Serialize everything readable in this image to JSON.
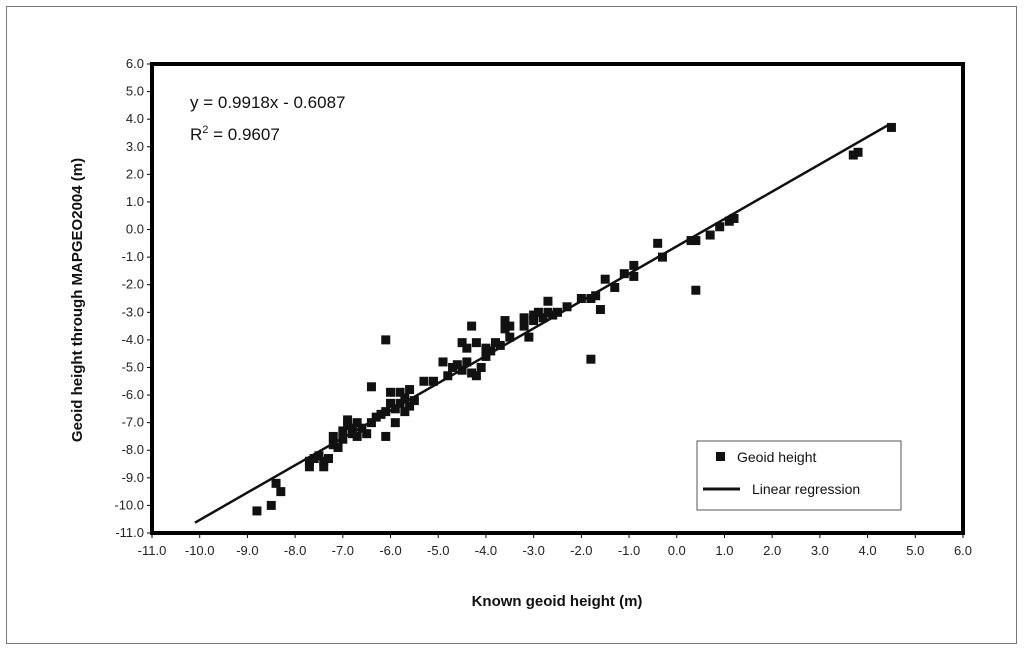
{
  "chart_data": {
    "type": "scatter",
    "xlabel": "Known geoid height (m)",
    "ylabel": "Geoid height through MAPGEO2004 (m)",
    "xlim": [
      -11,
      6
    ],
    "ylim": [
      -11,
      6
    ],
    "x_tick_labels": [
      "-11.0",
      "-10.0",
      "-9.0",
      "-8.0",
      "-7.0",
      "-6.0",
      "-5.0",
      "-4.0",
      "-3.0",
      "-2.0",
      "-1.0",
      "0.0",
      "1.0",
      "2.0",
      "3.0",
      "4.0",
      "5.0",
      "6.0"
    ],
    "y_tick_labels": [
      "-11.0",
      "-10.0",
      "-9.0",
      "-8.0",
      "-7.0",
      "-6.0",
      "-5.0",
      "-4.0",
      "-3.0",
      "-2.0",
      "-1.0",
      "0.0",
      "1.0",
      "2.0",
      "3.0",
      "4.0",
      "5.0",
      "6.0"
    ],
    "grid": false,
    "legend_position": "bottom-right",
    "annotations": {
      "equation": "y = 0.9918x - 0.6087",
      "r2_prefix": "R",
      "r2_sup": "2",
      "r2_value": " = 0.9607"
    },
    "series": [
      {
        "name": "Geoid height",
        "kind": "scatter",
        "marker": "square",
        "color": "#111111",
        "points": [
          [
            -8.8,
            -10.2
          ],
          [
            -8.5,
            -10.0
          ],
          [
            -8.4,
            -9.2
          ],
          [
            -8.3,
            -9.5
          ],
          [
            -7.7,
            -8.6
          ],
          [
            -7.7,
            -8.4
          ],
          [
            -7.6,
            -8.3
          ],
          [
            -7.5,
            -8.2
          ],
          [
            -7.4,
            -8.4
          ],
          [
            -7.4,
            -8.6
          ],
          [
            -7.3,
            -8.3
          ],
          [
            -7.2,
            -7.8
          ],
          [
            -7.2,
            -7.5
          ],
          [
            -7.1,
            -7.9
          ],
          [
            -7.0,
            -7.3
          ],
          [
            -7.0,
            -7.6
          ],
          [
            -6.9,
            -6.9
          ],
          [
            -6.9,
            -7.1
          ],
          [
            -6.8,
            -7.4
          ],
          [
            -6.8,
            -7.2
          ],
          [
            -6.7,
            -7.0
          ],
          [
            -6.7,
            -7.5
          ],
          [
            -6.6,
            -7.2
          ],
          [
            -6.5,
            -7.4
          ],
          [
            -6.4,
            -5.7
          ],
          [
            -6.4,
            -7.0
          ],
          [
            -6.3,
            -6.8
          ],
          [
            -6.2,
            -6.7
          ],
          [
            -6.1,
            -7.5
          ],
          [
            -6.1,
            -6.6
          ],
          [
            -6.1,
            -4.0
          ],
          [
            -6.0,
            -6.3
          ],
          [
            -6.0,
            -5.9
          ],
          [
            -5.9,
            -7.0
          ],
          [
            -5.9,
            -6.5
          ],
          [
            -5.8,
            -6.3
          ],
          [
            -5.8,
            -5.9
          ],
          [
            -5.7,
            -6.6
          ],
          [
            -5.7,
            -6.1
          ],
          [
            -5.6,
            -6.4
          ],
          [
            -5.6,
            -5.8
          ],
          [
            -5.5,
            -6.2
          ],
          [
            -5.3,
            -5.5
          ],
          [
            -5.1,
            -5.5
          ],
          [
            -4.9,
            -4.8
          ],
          [
            -4.8,
            -5.3
          ],
          [
            -4.7,
            -5.0
          ],
          [
            -4.6,
            -4.9
          ],
          [
            -4.5,
            -5.1
          ],
          [
            -4.5,
            -4.1
          ],
          [
            -4.4,
            -4.8
          ],
          [
            -4.4,
            -4.3
          ],
          [
            -4.3,
            -5.2
          ],
          [
            -4.3,
            -3.5
          ],
          [
            -4.2,
            -5.3
          ],
          [
            -4.2,
            -4.1
          ],
          [
            -4.1,
            -5.0
          ],
          [
            -4.0,
            -4.6
          ],
          [
            -4.0,
            -4.3
          ],
          [
            -3.9,
            -4.4
          ],
          [
            -3.8,
            -4.1
          ],
          [
            -3.7,
            -4.2
          ],
          [
            -3.6,
            -3.6
          ],
          [
            -3.6,
            -3.3
          ],
          [
            -3.5,
            -3.9
          ],
          [
            -3.5,
            -3.5
          ],
          [
            -3.2,
            -3.5
          ],
          [
            -3.2,
            -3.2
          ],
          [
            -3.1,
            -3.9
          ],
          [
            -3.0,
            -3.3
          ],
          [
            -3.0,
            -3.1
          ],
          [
            -2.9,
            -3.0
          ],
          [
            -2.8,
            -3.2
          ],
          [
            -2.7,
            -2.6
          ],
          [
            -2.7,
            -3.0
          ],
          [
            -2.6,
            -3.1
          ],
          [
            -2.5,
            -3.0
          ],
          [
            -2.3,
            -2.8
          ],
          [
            -2.0,
            -2.5
          ],
          [
            -1.8,
            -2.5
          ],
          [
            -1.8,
            -4.7
          ],
          [
            -1.7,
            -2.4
          ],
          [
            -1.6,
            -2.9
          ],
          [
            -1.5,
            -1.8
          ],
          [
            -1.3,
            -2.1
          ],
          [
            -1.1,
            -1.6
          ],
          [
            -0.9,
            -1.7
          ],
          [
            -0.9,
            -1.3
          ],
          [
            -0.4,
            -0.5
          ],
          [
            -0.3,
            -1.0
          ],
          [
            0.3,
            -0.4
          ],
          [
            0.4,
            -0.4
          ],
          [
            0.4,
            -2.2
          ],
          [
            0.7,
            -0.2
          ],
          [
            0.9,
            0.1
          ],
          [
            1.1,
            0.3
          ],
          [
            1.2,
            0.4
          ],
          [
            3.7,
            2.7
          ],
          [
            3.8,
            2.8
          ],
          [
            4.5,
            3.7
          ]
        ]
      },
      {
        "name": "Linear regression",
        "kind": "line",
        "color": "#111111",
        "slope": 0.9918,
        "intercept": -0.6087,
        "x_range": [
          -10.1,
          4.45
        ]
      }
    ]
  }
}
